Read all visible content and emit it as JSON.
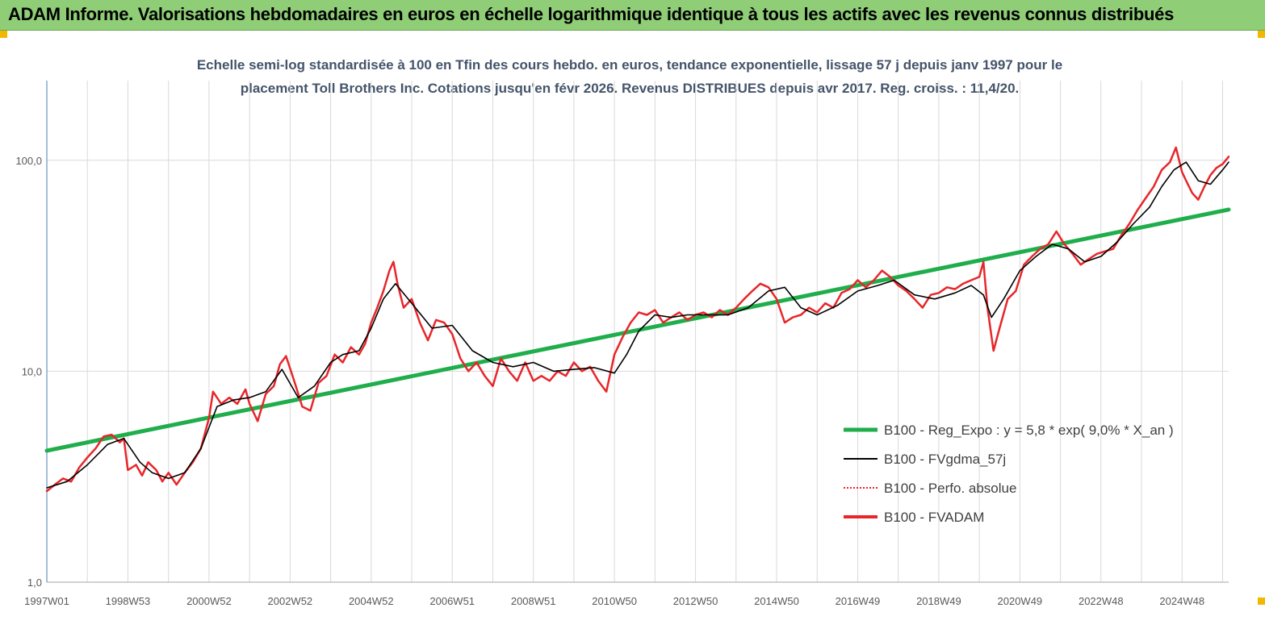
{
  "banner": {
    "title": "ADAM Informe. Valorisations hebdomadaires en euros en échelle logarithmique identique à tous les actifs avec les revenus connus distribués"
  },
  "colors": {
    "banner_bg": "#8fce77",
    "regression": "#1fae4b",
    "smoothed": "#000000",
    "perfo": "#e8262a",
    "fvadam": "#e8262a",
    "grid": "#d9d9d9",
    "corner_marks": "#f2b800"
  },
  "chart_data": {
    "type": "line",
    "subtitle_lines": [
      "Echelle semi-log standardisée à 100 en Tfin des cours hebdo. en euros, tendance exponentielle, lissage 57 j depuis janv 1997 pour le",
      "placement Toll Brothers Inc. Cotations jusqu'en févr 2026. Revenus DISTRIBUES depuis avr 2017. Reg. croiss. : 11,4/20."
    ],
    "y_scale": "log",
    "ylim": [
      1,
      200
    ],
    "y_ticks": [
      {
        "value": 1,
        "label": "1,0"
      },
      {
        "value": 10,
        "label": "10,0"
      },
      {
        "value": 100,
        "label": "100,0"
      }
    ],
    "xlim": [
      1997.0,
      2026.15
    ],
    "x_ticks": [
      {
        "value": 1997.0,
        "label": "1997W01"
      },
      {
        "value": 1999.0,
        "label": "1998W53"
      },
      {
        "value": 2001.0,
        "label": "2000W52"
      },
      {
        "value": 2003.0,
        "label": "2002W52"
      },
      {
        "value": 2005.0,
        "label": "2004W52"
      },
      {
        "value": 2007.0,
        "label": "2006W51"
      },
      {
        "value": 2009.0,
        "label": "2008W51"
      },
      {
        "value": 2011.0,
        "label": "2010W50"
      },
      {
        "value": 2013.0,
        "label": "2012W50"
      },
      {
        "value": 2015.0,
        "label": "2014W50"
      },
      {
        "value": 2017.0,
        "label": "2016W49"
      },
      {
        "value": 2019.0,
        "label": "2018W49"
      },
      {
        "value": 2021.0,
        "label": "2020W49"
      },
      {
        "value": 2023.0,
        "label": "2022W48"
      },
      {
        "value": 2025.0,
        "label": "2024W48"
      }
    ],
    "grid": "vertical",
    "legend_position": "bottom-right",
    "series": [
      {
        "name": "B100 - Reg_Expo : y = 5,8 * exp( 9,0% *  X_an )",
        "kind": "regression",
        "x": [
          1997.0,
          2026.15
        ],
        "values": [
          4.2,
          58.4
        ]
      },
      {
        "name": "B100 - FVgdma_57j",
        "kind": "smoothed",
        "x": [
          1997.0,
          1997.5,
          1998.0,
          1998.5,
          1998.9,
          1999.3,
          1999.6,
          2000.0,
          2000.4,
          2000.8,
          2001.2,
          2001.6,
          2002.0,
          2002.4,
          2002.8,
          2003.2,
          2003.6,
          2004.0,
          2004.3,
          2004.7,
          2005.0,
          2005.3,
          2005.6,
          2006.0,
          2006.5,
          2007.0,
          2007.5,
          2008.0,
          2008.5,
          2009.0,
          2009.5,
          2010.0,
          2010.5,
          2011.0,
          2011.3,
          2011.6,
          2012.0,
          2012.4,
          2012.8,
          2013.3,
          2013.8,
          2014.3,
          2014.8,
          2015.2,
          2015.6,
          2016.0,
          2016.5,
          2017.0,
          2017.5,
          2017.9,
          2018.4,
          2018.9,
          2019.4,
          2019.8,
          2020.1,
          2020.3,
          2020.6,
          2021.0,
          2021.4,
          2021.8,
          2022.2,
          2022.6,
          2023.0,
          2023.4,
          2023.8,
          2024.2,
          2024.5,
          2024.8,
          2025.1,
          2025.4,
          2025.7,
          2026.0,
          2026.15
        ],
        "values": [
          2.8,
          3.0,
          3.6,
          4.5,
          4.8,
          3.7,
          3.3,
          3.1,
          3.3,
          4.3,
          6.8,
          7.3,
          7.5,
          8.0,
          10.2,
          7.5,
          8.5,
          11.0,
          12.0,
          12.5,
          16.0,
          22.0,
          26.0,
          21.0,
          16.0,
          16.5,
          12.5,
          11.0,
          10.5,
          11.0,
          10.0,
          10.2,
          10.4,
          9.8,
          12.0,
          15.5,
          18.5,
          18.0,
          18.5,
          18.5,
          18.5,
          20.0,
          24.0,
          25.0,
          20.0,
          18.5,
          20.5,
          24.0,
          25.5,
          27.0,
          23.0,
          22.0,
          23.5,
          25.5,
          23.0,
          18.0,
          22.0,
          30.0,
          35.0,
          40.0,
          38.0,
          33.0,
          35.0,
          41.0,
          50.0,
          60.0,
          75.0,
          90.0,
          98.0,
          80.0,
          77.0,
          90.0,
          98.0
        ]
      },
      {
        "name": "B100 - Perfo. absolue",
        "kind": "perfo",
        "x": [],
        "values": []
      },
      {
        "name": "B100 - FVADAM",
        "kind": "fvadam",
        "x": [
          1997.0,
          1997.2,
          1997.4,
          1997.6,
          1997.8,
          1998.0,
          1998.2,
          1998.4,
          1998.6,
          1998.8,
          1998.9,
          1999.0,
          1999.2,
          1999.35,
          1999.5,
          1999.7,
          1999.85,
          2000.0,
          2000.2,
          2000.4,
          2000.6,
          2000.8,
          2001.0,
          2001.1,
          2001.3,
          2001.5,
          2001.7,
          2001.9,
          2002.0,
          2002.2,
          2002.4,
          2002.6,
          2002.75,
          2002.9,
          2003.1,
          2003.3,
          2003.5,
          2003.7,
          2003.9,
          2004.1,
          2004.3,
          2004.5,
          2004.7,
          2004.85,
          2005.0,
          2005.15,
          2005.3,
          2005.45,
          2005.55,
          2005.65,
          2005.8,
          2006.0,
          2006.2,
          2006.4,
          2006.6,
          2006.8,
          2007.0,
          2007.2,
          2007.4,
          2007.6,
          2007.8,
          2008.0,
          2008.2,
          2008.4,
          2008.6,
          2008.8,
          2009.0,
          2009.2,
          2009.4,
          2009.6,
          2009.8,
          2010.0,
          2010.2,
          2010.4,
          2010.6,
          2010.8,
          2011.0,
          2011.2,
          2011.4,
          2011.6,
          2011.8,
          2012.0,
          2012.2,
          2012.4,
          2012.6,
          2012.8,
          2013.0,
          2013.2,
          2013.4,
          2013.6,
          2013.8,
          2014.0,
          2014.2,
          2014.4,
          2014.6,
          2014.8,
          2015.0,
          2015.2,
          2015.4,
          2015.6,
          2015.8,
          2016.0,
          2016.2,
          2016.4,
          2016.6,
          2016.8,
          2017.0,
          2017.2,
          2017.4,
          2017.6,
          2017.8,
          2018.0,
          2018.2,
          2018.4,
          2018.6,
          2018.8,
          2019.0,
          2019.2,
          2019.4,
          2019.6,
          2019.8,
          2020.0,
          2020.1,
          2020.2,
          2020.35,
          2020.5,
          2020.7,
          2020.9,
          2021.1,
          2021.3,
          2021.5,
          2021.7,
          2021.9,
          2022.1,
          2022.3,
          2022.5,
          2022.7,
          2022.9,
          2023.1,
          2023.3,
          2023.5,
          2023.7,
          2023.9,
          2024.1,
          2024.3,
          2024.5,
          2024.7,
          2024.85,
          2025.0,
          2025.1,
          2025.25,
          2025.4,
          2025.55,
          2025.7,
          2025.85,
          2026.0,
          2026.15
        ],
        "values": [
          2.7,
          2.9,
          3.1,
          3.0,
          3.5,
          3.9,
          4.3,
          4.9,
          5.0,
          4.6,
          4.8,
          3.4,
          3.6,
          3.2,
          3.7,
          3.4,
          3.0,
          3.3,
          2.9,
          3.3,
          3.7,
          4.3,
          6.0,
          8.0,
          7.0,
          7.5,
          7.0,
          8.2,
          7.0,
          5.8,
          7.8,
          8.5,
          10.8,
          11.8,
          9.0,
          6.8,
          6.5,
          8.8,
          9.5,
          12.0,
          11.0,
          13.0,
          12.0,
          13.5,
          17.0,
          20.0,
          24.0,
          30.0,
          33.0,
          26.0,
          20.0,
          22.0,
          17.0,
          14.0,
          17.5,
          17.0,
          15.0,
          11.5,
          10.0,
          11.0,
          9.5,
          8.5,
          11.5,
          10.0,
          9.0,
          11.0,
          9.0,
          9.5,
          9.0,
          10.0,
          9.5,
          11.0,
          10.0,
          10.5,
          9.0,
          8.0,
          12.0,
          14.5,
          17.0,
          19.0,
          18.5,
          19.5,
          17.0,
          18.0,
          19.0,
          17.5,
          18.5,
          19.0,
          18.0,
          19.5,
          18.5,
          20.0,
          22.0,
          24.0,
          26.0,
          25.0,
          22.0,
          17.0,
          18.0,
          18.5,
          20.0,
          19.0,
          21.0,
          20.0,
          23.5,
          24.5,
          27.0,
          25.0,
          27.0,
          30.0,
          28.0,
          25.5,
          24.0,
          22.0,
          20.0,
          23.0,
          23.5,
          25.0,
          24.5,
          26.0,
          27.0,
          28.0,
          33.0,
          20.0,
          12.5,
          16.0,
          22.0,
          24.0,
          32.0,
          35.0,
          38.0,
          40.0,
          46.0,
          40.0,
          36.0,
          32.0,
          34.0,
          36.0,
          37.0,
          38.0,
          44.0,
          50.0,
          58.0,
          66.0,
          75.0,
          90.0,
          98.0,
          115.0,
          88.0,
          80.0,
          70.0,
          65.0,
          75.0,
          85.0,
          92.0,
          96.0,
          104.0
        ]
      }
    ]
  }
}
